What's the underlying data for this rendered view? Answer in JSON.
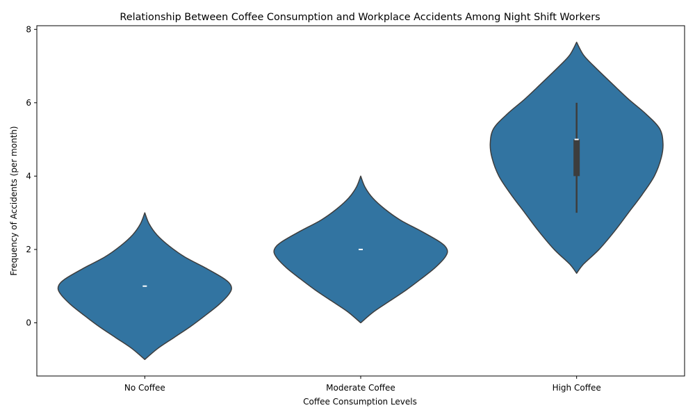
{
  "chart_data": {
    "type": "violin",
    "title": "Relationship Between Coffee Consumption and Workplace Accidents Among Night Shift Workers",
    "xlabel": "Coffee Consumption Levels",
    "ylabel": "Frequency of Accidents (per month)",
    "categories": [
      "No Coffee",
      "Moderate Coffee",
      "High Coffee"
    ],
    "ylim": [
      -1.45,
      8.1
    ],
    "yticks": [
      0,
      2,
      4,
      6,
      8
    ],
    "grid": false,
    "legend": "none",
    "color": "#3274a1",
    "edge_color": "#3d3d3d",
    "violins": [
      {
        "category": "No Coffee",
        "range": [
          -1,
          3
        ],
        "density": [
          [
            -1.0,
            0.0
          ],
          [
            -0.7,
            0.15
          ],
          [
            -0.4,
            0.34
          ],
          [
            -0.1,
            0.53
          ],
          [
            0.2,
            0.7
          ],
          [
            0.5,
            0.86
          ],
          [
            0.8,
            0.98
          ],
          [
            1.0,
            1.0
          ],
          [
            1.2,
            0.92
          ],
          [
            1.5,
            0.7
          ],
          [
            1.8,
            0.46
          ],
          [
            2.1,
            0.28
          ],
          [
            2.4,
            0.14
          ],
          [
            2.7,
            0.05
          ],
          [
            3.0,
            0.0
          ]
        ],
        "median": 1,
        "q1": 1,
        "q3": 1,
        "whisker_low": 1,
        "whisker_high": 1
      },
      {
        "category": "Moderate Coffee",
        "range": [
          0,
          4
        ],
        "density": [
          [
            0.0,
            0.0
          ],
          [
            0.3,
            0.15
          ],
          [
            0.6,
            0.34
          ],
          [
            0.9,
            0.53
          ],
          [
            1.2,
            0.7
          ],
          [
            1.5,
            0.86
          ],
          [
            1.8,
            0.98
          ],
          [
            2.0,
            1.0
          ],
          [
            2.2,
            0.92
          ],
          [
            2.5,
            0.7
          ],
          [
            2.8,
            0.46
          ],
          [
            3.1,
            0.28
          ],
          [
            3.4,
            0.14
          ],
          [
            3.7,
            0.05
          ],
          [
            4.0,
            0.0
          ]
        ],
        "median": 2,
        "q1": 2,
        "q3": 2,
        "whisker_low": 2,
        "whisker_high": 2
      },
      {
        "category": "High Coffee",
        "range": [
          1.35,
          7.65
        ],
        "density": [
          [
            1.35,
            0.0
          ],
          [
            1.6,
            0.08
          ],
          [
            2.0,
            0.26
          ],
          [
            2.5,
            0.44
          ],
          [
            3.0,
            0.6
          ],
          [
            3.5,
            0.76
          ],
          [
            4.0,
            0.9
          ],
          [
            4.5,
            0.98
          ],
          [
            4.9,
            1.0
          ],
          [
            5.3,
            0.96
          ],
          [
            5.7,
            0.8
          ],
          [
            6.1,
            0.6
          ],
          [
            6.5,
            0.42
          ],
          [
            7.0,
            0.2
          ],
          [
            7.3,
            0.08
          ],
          [
            7.65,
            0.0
          ]
        ],
        "median": 5,
        "q1": 4,
        "q3": 5,
        "whisker_low": 3,
        "whisker_high": 6
      }
    ]
  }
}
